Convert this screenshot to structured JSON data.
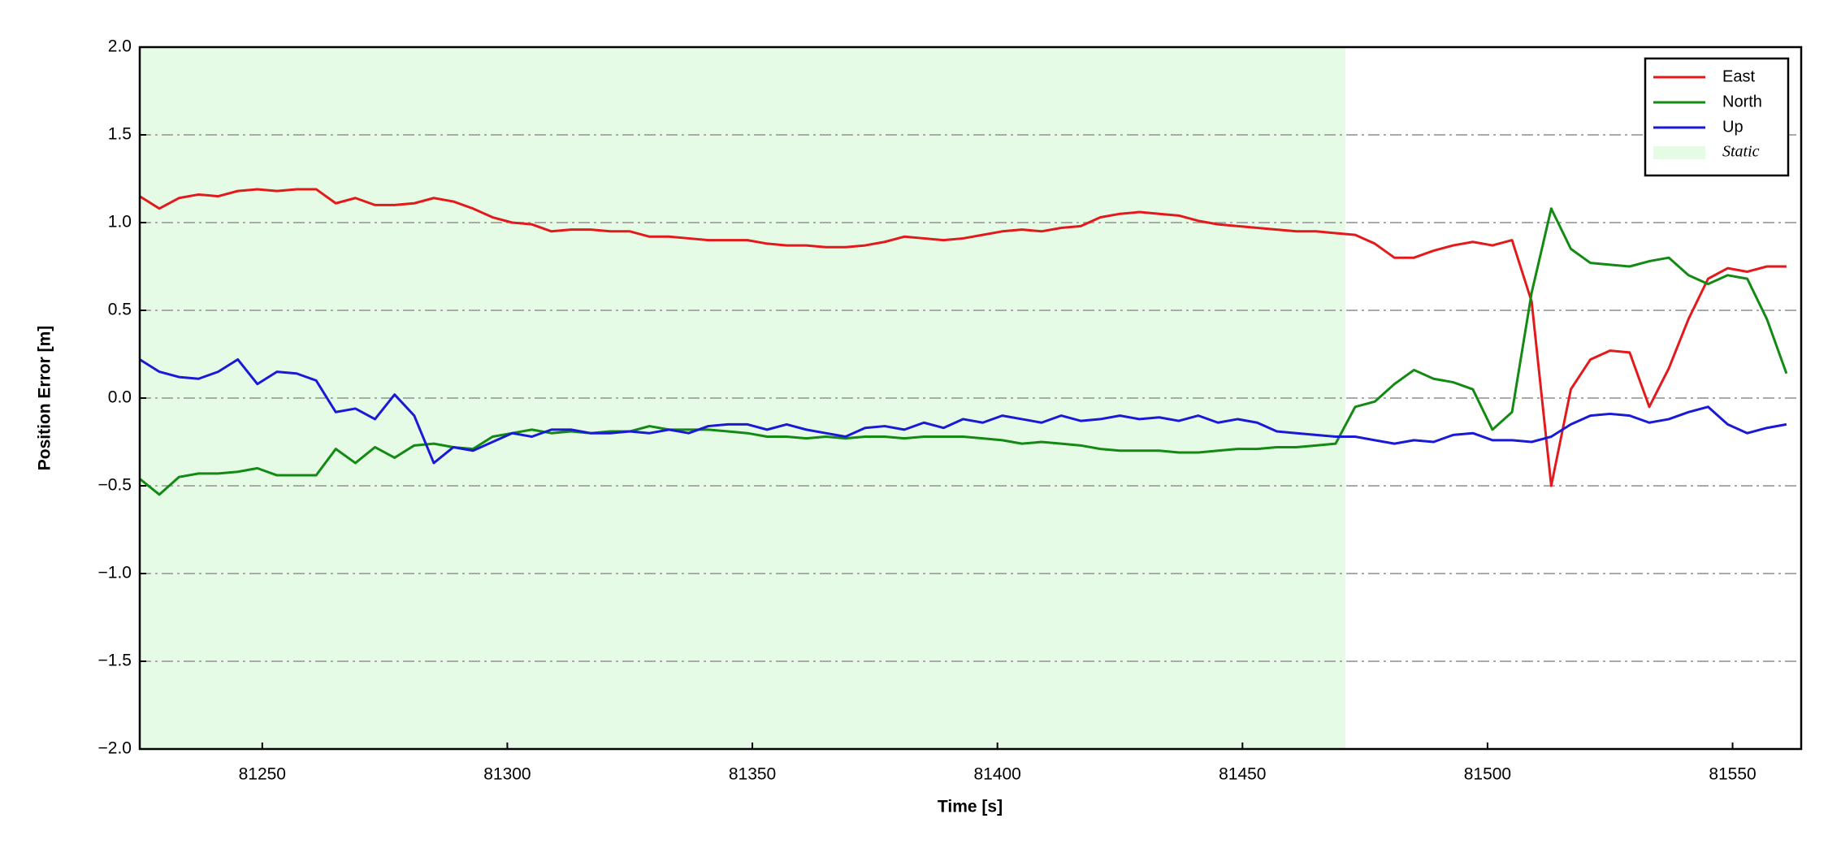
{
  "chart_data": {
    "type": "line",
    "xlabel": "Time [s]",
    "ylabel": "Position Error [m]",
    "xlim": [
      81225,
      81564
    ],
    "ylim": [
      -2,
      2
    ],
    "xticks": [
      81250,
      81300,
      81350,
      81400,
      81450,
      81500,
      81550
    ],
    "yticks": [
      {
        "value": -2,
        "label": "−2.0"
      },
      {
        "value": -1.5,
        "label": "−1.5"
      },
      {
        "value": -1,
        "label": "−1.0"
      },
      {
        "value": -0.5,
        "label": "−0.5"
      },
      {
        "value": 0,
        "label": "0.0"
      },
      0.5,
      {
        "value": 1,
        "label": "1.0"
      },
      1.5,
      {
        "value": 2,
        "label": "2.0"
      }
    ],
    "grid": true,
    "legend": "upper right",
    "shaded_region": {
      "label": "Static",
      "x": [
        81225,
        81471
      ],
      "color": "#e6fbe6"
    },
    "x": [
      81225,
      81229,
      81233,
      81237,
      81241,
      81245,
      81249,
      81253,
      81257,
      81261,
      81265,
      81269,
      81273,
      81277,
      81281,
      81285,
      81289,
      81293,
      81297,
      81301,
      81305,
      81309,
      81313,
      81317,
      81321,
      81325,
      81329,
      81333,
      81337,
      81341,
      81345,
      81349,
      81353,
      81357,
      81361,
      81365,
      81369,
      81373,
      81377,
      81381,
      81385,
      81389,
      81393,
      81397,
      81401,
      81405,
      81409,
      81413,
      81417,
      81421,
      81425,
      81429,
      81433,
      81437,
      81441,
      81445,
      81449,
      81453,
      81457,
      81461,
      81465,
      81469,
      81473,
      81477,
      81481,
      81485,
      81489,
      81493,
      81497,
      81501,
      81505,
      81509,
      81513,
      81517,
      81521,
      81525,
      81529,
      81533,
      81537,
      81541,
      81545,
      81549,
      81553,
      81557,
      81561
    ],
    "series": [
      {
        "name": "East",
        "color": "#e31a1c",
        "values": [
          1.15,
          1.08,
          1.14,
          1.16,
          1.15,
          1.18,
          1.19,
          1.18,
          1.19,
          1.19,
          1.11,
          1.14,
          1.1,
          1.1,
          1.11,
          1.14,
          1.12,
          1.08,
          1.03,
          1.0,
          0.99,
          0.95,
          0.96,
          0.96,
          0.95,
          0.95,
          0.92,
          0.92,
          0.91,
          0.9,
          0.9,
          0.9,
          0.88,
          0.87,
          0.87,
          0.86,
          0.86,
          0.87,
          0.89,
          0.92,
          0.91,
          0.9,
          0.91,
          0.93,
          0.95,
          0.96,
          0.95,
          0.97,
          0.98,
          1.03,
          1.05,
          1.06,
          1.05,
          1.04,
          1.01,
          0.99,
          0.98,
          0.97,
          0.96,
          0.95,
          0.95,
          0.94,
          0.93,
          0.88,
          0.8,
          0.8,
          0.84,
          0.87,
          0.89,
          0.87,
          0.9,
          0.55,
          -0.5,
          0.05,
          0.22,
          0.27,
          0.26,
          -0.05,
          0.17,
          0.45,
          0.68,
          0.74,
          0.72,
          0.75,
          0.75
        ]
      },
      {
        "name": "North",
        "color": "#138a13",
        "values": [
          -0.46,
          -0.55,
          -0.45,
          -0.43,
          -0.43,
          -0.42,
          -0.4,
          -0.44,
          -0.44,
          -0.44,
          -0.29,
          -0.37,
          -0.28,
          -0.34,
          -0.27,
          -0.26,
          -0.28,
          -0.29,
          -0.22,
          -0.2,
          -0.18,
          -0.2,
          -0.19,
          -0.2,
          -0.19,
          -0.19,
          -0.16,
          -0.18,
          -0.18,
          -0.18,
          -0.19,
          -0.2,
          -0.22,
          -0.22,
          -0.23,
          -0.22,
          -0.23,
          -0.22,
          -0.22,
          -0.23,
          -0.22,
          -0.22,
          -0.22,
          -0.23,
          -0.24,
          -0.26,
          -0.25,
          -0.26,
          -0.27,
          -0.29,
          -0.3,
          -0.3,
          -0.3,
          -0.31,
          -0.31,
          -0.3,
          -0.29,
          -0.29,
          -0.28,
          -0.28,
          -0.27,
          -0.26,
          -0.05,
          -0.02,
          0.08,
          0.16,
          0.11,
          0.09,
          0.05,
          -0.18,
          -0.08,
          0.6,
          1.08,
          0.85,
          0.77,
          0.76,
          0.75,
          0.78,
          0.8,
          0.7,
          0.65,
          0.7,
          0.68,
          0.45,
          0.14
        ]
      },
      {
        "name": "Up",
        "color": "#1a1ad6",
        "values": [
          0.22,
          0.15,
          0.12,
          0.11,
          0.15,
          0.22,
          0.08,
          0.15,
          0.14,
          0.1,
          -0.08,
          -0.06,
          -0.12,
          0.02,
          -0.1,
          -0.37,
          -0.28,
          -0.3,
          -0.25,
          -0.2,
          -0.22,
          -0.18,
          -0.18,
          -0.2,
          -0.2,
          -0.19,
          -0.2,
          -0.18,
          -0.2,
          -0.16,
          -0.15,
          -0.15,
          -0.18,
          -0.15,
          -0.18,
          -0.2,
          -0.22,
          -0.17,
          -0.16,
          -0.18,
          -0.14,
          -0.17,
          -0.12,
          -0.14,
          -0.1,
          -0.12,
          -0.14,
          -0.1,
          -0.13,
          -0.12,
          -0.1,
          -0.12,
          -0.11,
          -0.13,
          -0.1,
          -0.14,
          -0.12,
          -0.14,
          -0.19,
          -0.2,
          -0.21,
          -0.22,
          -0.22,
          -0.24,
          -0.26,
          -0.24,
          -0.25,
          -0.21,
          -0.2,
          -0.24,
          -0.24,
          -0.25,
          -0.22,
          -0.15,
          -0.1,
          -0.09,
          -0.1,
          -0.14,
          -0.12,
          -0.08,
          -0.05,
          -0.15,
          -0.2,
          -0.17,
          -0.15
        ]
      }
    ]
  }
}
